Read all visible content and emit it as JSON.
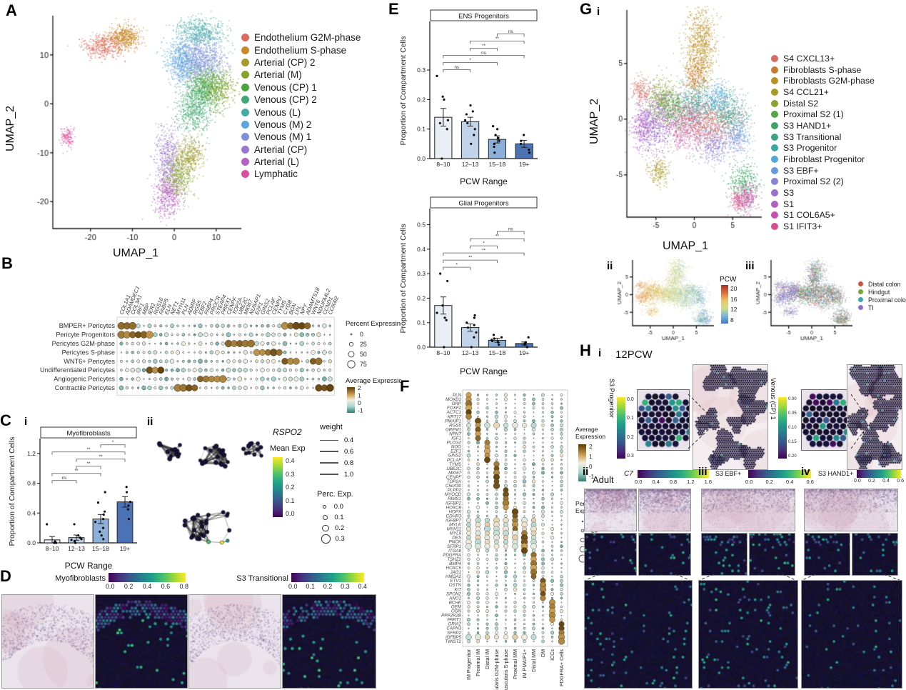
{
  "colors": {
    "viridis": [
      "#440154",
      "#46327e",
      "#365c8d",
      "#277f8e",
      "#1fa187",
      "#4ac16d",
      "#a0da39",
      "#fde725"
    ],
    "brbg": [
      "#2e7d72",
      "#a9d6cf",
      "#f2eedf",
      "#cfa355",
      "#5a3a06"
    ],
    "pcw_stops": [
      "#a63126",
      "#d96f3d",
      "#e8c56a",
      "#cfe08a",
      "#79b5d9",
      "#4a76c9"
    ],
    "bar_fills": [
      "#e9eef7",
      "#c2d4ea",
      "#8cb0d9",
      "#4a72b5"
    ]
  },
  "panels": {
    "A": {
      "label": "A",
      "xlabel": "UMAP_1",
      "ylabel": "UMAP_2",
      "xticks": [
        -20,
        -10,
        0,
        10
      ],
      "yticks": [
        10,
        0,
        -10,
        -20
      ],
      "xlim": [
        -29,
        16
      ],
      "ylim": [
        -25.5,
        18
      ],
      "legend": [
        {
          "label": "Endothelium G2M-phase",
          "color": "#d96a5f"
        },
        {
          "label": "Endothelium S-phase",
          "color": "#c88a28"
        },
        {
          "label": "Arterial (CP) 2",
          "color": "#a39b2f"
        },
        {
          "label": "Arterial (M)",
          "color": "#85a42c"
        },
        {
          "label": "Venous (CP) 1",
          "color": "#4aa53c"
        },
        {
          "label": "Venous (CP) 2",
          "color": "#3fa873"
        },
        {
          "label": "Venous (L)",
          "color": "#45aaa5"
        },
        {
          "label": "Venous (M) 2",
          "color": "#5aa7dc"
        },
        {
          "label": "Venous (M) 1",
          "color": "#7e8fd9"
        },
        {
          "label": "Arterial (CP)",
          "color": "#9a77cf"
        },
        {
          "label": "Arterial (L)",
          "color": "#b55fc2"
        },
        {
          "label": "Lymphatic",
          "color": "#d9509c"
        }
      ],
      "clusters": [
        [
          -17,
          12,
          2.6,
          1.2,
          420,
          "#d96a5f"
        ],
        [
          -12,
          13.6,
          2.0,
          1.3,
          480,
          "#c88a28"
        ],
        [
          6,
          14.6,
          3.0,
          1.5,
          520,
          "#45aaa5"
        ],
        [
          1.6,
          9,
          2.0,
          2.2,
          600,
          "#5aa7dc"
        ],
        [
          6.6,
          8.6,
          2.8,
          2.4,
          800,
          "#7e8fd9"
        ],
        [
          10.6,
          3,
          2.0,
          2.0,
          420,
          "#85a42c"
        ],
        [
          7.6,
          3.6,
          2.0,
          2.0,
          500,
          "#4aa53c"
        ],
        [
          5,
          -0.6,
          2.2,
          3.0,
          700,
          "#3fa873"
        ],
        [
          -1.6,
          -11,
          1.5,
          3.2,
          460,
          "#9a77cf"
        ],
        [
          3.6,
          -10.6,
          1.7,
          1.7,
          380,
          "#a39b2f"
        ],
        [
          1,
          -14.6,
          1.7,
          2.2,
          420,
          "#85a42c"
        ],
        [
          -1.6,
          -18.6,
          1.7,
          2.4,
          420,
          "#b55fc2"
        ],
        [
          -25.6,
          -6.6,
          0.8,
          1.0,
          130,
          "#d9509c"
        ]
      ]
    },
    "B": {
      "label": "B",
      "rows": [
        "BMPER+ Pericytes",
        "Pericyte Progenitors",
        "Pericytes G2M-phase",
        "Pericytes S-phase",
        "WNT6+ Pericytes",
        "Undifferentiated Pericytes",
        "Angiogenic Pericytes",
        "Contractile Pericytes"
      ],
      "genes": [
        "COL1A1",
        "ADAMDEC1",
        "COL3A1",
        "IRF1",
        "MBP",
        "IER2",
        "RGS16",
        "FABP5",
        "ELN",
        "NET1",
        "MYH11",
        "PLN",
        "ADIRF",
        "RGS5",
        "EBF2",
        "FABP4",
        "PROCR",
        "STEAP4",
        "PRRX1",
        "CENPF",
        "TOP2A",
        "UBE2C",
        "MKI67",
        "NUSAP1",
        "E2F1",
        "GINS2",
        "PCLAF",
        "CENPU",
        "TYMS",
        "CYGB",
        "BGN",
        "LPL",
        "NPY",
        "ADAMTS18",
        "WNT6",
        "NDUFA4L2",
        "CCND1",
        "COX4I2"
      ],
      "hot": [
        [
          [
            29,
            33
          ],
          [
            0,
            2
          ]
        ],
        [
          [
            0,
            5
          ]
        ],
        [
          [
            19,
            23
          ]
        ],
        [
          [
            24,
            28
          ]
        ],
        [
          [
            34,
            35
          ],
          [
            29,
            31
          ]
        ],
        [
          [
            5,
            7
          ]
        ],
        [
          [
            14,
            18
          ]
        ],
        [
          [
            10,
            13
          ],
          [
            35,
            37
          ]
        ]
      ],
      "legend_percent": {
        "title": "Percent Expressing",
        "values": [
          0,
          25,
          50,
          75
        ]
      },
      "legend_avg": {
        "title": "Average Expression",
        "ticks": [
          2,
          1,
          0,
          -1
        ]
      }
    },
    "C": {
      "label": "C",
      "sub_i": "i",
      "sub_ii": "ii",
      "chart": "myofibroblasts",
      "network": {
        "gene": "RSPO2",
        "mean_exp": {
          "title": "Mean Exp",
          "ticks": [
            "0.4",
            "0.3",
            "0.2",
            "0.1",
            "0.0"
          ]
        },
        "weight": {
          "title": "weight",
          "values": [
            "0.4",
            "0.6",
            "0.8",
            "1.0"
          ]
        },
        "perc": {
          "title": "Perc. Exp.",
          "values": [
            "0.0",
            "0.1",
            "0.2",
            "0.3"
          ]
        }
      }
    },
    "D": {
      "label": "D",
      "bars": [
        {
          "label": "Myofibroblasts",
          "ticks": [
            "0.0",
            "0.2",
            "0.4",
            "0.6",
            "0.8"
          ]
        },
        {
          "label": "S3 Transitional",
          "ticks": [
            "0.0",
            "0.1",
            "0.2",
            "0.3",
            "0.4"
          ]
        }
      ]
    },
    "E": {
      "label": "E",
      "charts": [
        "ens_progenitors",
        "glial_progenitors"
      ]
    },
    "F": {
      "label": "F",
      "genes": [
        "PLN",
        "MOXD1",
        "GRP",
        "FOXF2",
        "ACTC1",
        "KRT17",
        "PMAIP1",
        "RGS5",
        "GREM1",
        "NPNT",
        "IGF1",
        "PLCG2",
        "NOG",
        "E2F1",
        "GINS2",
        "PCLAF",
        "TYMS",
        "UBE2C",
        "MKI67",
        "CENPF",
        "TOP2A",
        "C5orf30",
        "PLPP2",
        "MYOCD",
        "RIMS1",
        "IGFBP2",
        "HOXC8",
        "HOPX",
        "CDHR3",
        "IGFBP7",
        "MYLK",
        "MYH11",
        "MYL9",
        "DES",
        "PNCK",
        "SFRP1",
        "ITGA8",
        "PDGFRA",
        "TSHZ2",
        "BMP4",
        "HOXC5",
        "JAG1",
        "HMGA2",
        "ETV1",
        "OSTN",
        "KIT",
        "SPON2",
        "ANO1",
        "BCHE",
        "GEM",
        "OGN",
        "PPP2R2B",
        "PART1",
        "GRIA2",
        "CAPN3",
        "SFRP2",
        "IGFBP5",
        "TWIST2"
      ],
      "columns": [
        "IM Progenitor",
        "Proximal IM",
        "Distal IM",
        "Muscularis G2M-phase",
        "Muscularis S-phase",
        "Proximal MM",
        "IM PMAIP1+",
        "Distal MM",
        "OM",
        "ICCs",
        "PDGFRA+ Cells"
      ],
      "wide_rows": [
        7,
        29,
        30,
        31,
        32,
        33,
        34,
        35,
        56
      ],
      "legend_avg": {
        "title": [
          "Average",
          "Expression"
        ],
        "ticks": [
          2,
          1,
          0,
          -1
        ]
      },
      "legend_percent": {
        "title": [
          "Percent",
          "Expressing"
        ],
        "values": [
          0,
          25,
          50,
          75,
          100
        ]
      }
    },
    "G": {
      "label": "G",
      "sub_i": "i",
      "sub_ii": "ii",
      "sub_iii": "iii",
      "xlabel": "UMAP_1",
      "ylabel": "UMAP_2",
      "xticks": [
        -5,
        0,
        5
      ],
      "yticks": [
        5,
        0,
        -5
      ],
      "xlim": [
        -8.8,
        8.8
      ],
      "ylim": [
        -8.8,
        9.8
      ],
      "legend": [
        {
          "label": "S4 CXCL13+",
          "color": "#d66a5e"
        },
        {
          "label": "Fibroblasts S-phase",
          "color": "#cc7a2c"
        },
        {
          "label": "Fibroblasts G2M-phase",
          "color": "#bb8f22"
        },
        {
          "label": "S4 CCL21+",
          "color": "#a89a28"
        },
        {
          "label": "Distal S2",
          "color": "#8aa32e"
        },
        {
          "label": "Proximal S2 (1)",
          "color": "#55a445"
        },
        {
          "label": "S3 HAND1+",
          "color": "#3aa566"
        },
        {
          "label": "S3 Transitional",
          "color": "#3ba583"
        },
        {
          "label": "S3 Progenitor",
          "color": "#3aa7a3"
        },
        {
          "label": "Fibroblast Progenitor",
          "color": "#4fa8d8"
        },
        {
          "label": "S3 EBF+",
          "color": "#6b97de"
        },
        {
          "label": "Proximal S2 (2)",
          "color": "#8583d8"
        },
        {
          "label": "S3",
          "color": "#9a6fce"
        },
        {
          "label": "S1",
          "color": "#b25fc4"
        },
        {
          "label": "S1 COL6A5+",
          "color": "#cc4fae"
        },
        {
          "label": "S1 IFIT3+",
          "color": "#d84f8c"
        }
      ],
      "clusters": [
        [
          0.8,
          6.6,
          1.0,
          1.8,
          800,
          "#bb8f22"
        ],
        [
          0.2,
          3.9,
          0.8,
          0.8,
          260,
          "#cc7a2c"
        ],
        [
          -4.3,
          1.8,
          1.0,
          1.0,
          420,
          "#8aa32e"
        ],
        [
          -2.7,
          0.9,
          1.1,
          0.9,
          420,
          "#55a445"
        ],
        [
          0.3,
          1.3,
          1.3,
          1.0,
          520,
          "#3aa7a3"
        ],
        [
          -5.4,
          -0.3,
          1.2,
          1.4,
          650,
          "#9a6fce"
        ],
        [
          -6.9,
          -0.7,
          0.7,
          0.9,
          240,
          "#b25fc4"
        ],
        [
          -1.3,
          -0.5,
          1.5,
          1.1,
          560,
          "#c75fae"
        ],
        [
          1.9,
          -0.3,
          2.0,
          1.2,
          720,
          "#d66a5e"
        ],
        [
          4.7,
          0.6,
          1.1,
          0.9,
          380,
          "#3ba583"
        ],
        [
          3.3,
          1.9,
          0.9,
          0.7,
          260,
          "#4fa8d8"
        ],
        [
          5.7,
          -1.3,
          0.8,
          0.8,
          260,
          "#6b97de"
        ],
        [
          2.5,
          -2.3,
          1.3,
          0.9,
          340,
          "#8583d8"
        ],
        [
          6.3,
          -5.7,
          1.0,
          1.1,
          380,
          "#3aa566"
        ],
        [
          7.0,
          -7.0,
          0.6,
          0.7,
          200,
          "#cc4fae"
        ],
        [
          5.7,
          -7.3,
          0.6,
          0.5,
          170,
          "#d84f8c"
        ],
        [
          -4.7,
          -4.7,
          0.8,
          0.6,
          210,
          "#a89a28"
        ],
        [
          -7.0,
          2.7,
          0.6,
          0.6,
          160,
          "#d66a5e"
        ]
      ],
      "pcw": {
        "title": "PCW",
        "ticks": [
          "20",
          "16",
          "12",
          "8"
        ]
      },
      "regions": [
        {
          "label": "Distal colon",
          "color": "#c0564c"
        },
        {
          "label": "Hindgut",
          "color": "#79a43c"
        },
        {
          "label": "Proximal colon",
          "color": "#3aa6a8"
        },
        {
          "label": "TI",
          "color": "#8b6fc9"
        }
      ]
    },
    "H": {
      "label": "H",
      "sub_i": "i",
      "stage": "12PCW",
      "i": {
        "left": {
          "label": "S3 Progenitor",
          "ticks": [
            "0.0",
            "0.1",
            "0.2",
            "0.3"
          ]
        },
        "right": {
          "label": "Venous (CP) 1",
          "ticks": [
            "0.00",
            "0.05",
            "0.10",
            "0.15",
            "0.20"
          ]
        }
      },
      "sub_ii": "ii",
      "adult": "Adult",
      "c7": {
        "label": "C7",
        "ticks": [
          "0.0",
          "0.4",
          "0.8",
          "1.2",
          "1.6"
        ]
      },
      "sub_iii": "iii",
      "ebf": {
        "label": "S3 EBF+",
        "ticks": [
          "0.0",
          "0.2",
          "0.4",
          "0.6"
        ]
      },
      "sub_iv": "iv",
      "hand1": {
        "label": "S3 HAND1+",
        "ticks": [
          "0.0",
          "0.2",
          "0.4",
          "0.6"
        ]
      }
    }
  },
  "chart_data": [
    {
      "id": "myofibroblasts",
      "type": "bar",
      "title": "Myofibroblasts",
      "categories": [
        "8–10",
        "12–13",
        "15–18",
        "19+"
      ],
      "values": [
        0.04,
        0.07,
        0.32,
        0.55
      ],
      "errors": [
        0.045,
        0.035,
        0.06,
        0.07
      ],
      "points": [
        [
          0.0,
          0.0,
          0.02,
          0.25
        ],
        [
          0.0,
          0.02,
          0.04,
          0.05,
          0.07,
          0.1,
          0.25
        ],
        [
          0.05,
          0.1,
          0.15,
          0.2,
          0.28,
          0.32,
          0.38,
          0.42,
          0.54,
          0.68
        ],
        [
          0.32,
          0.45,
          0.5,
          0.55,
          0.68,
          0.75
        ]
      ],
      "significance": [
        {
          "a": 0,
          "b": 1,
          "label": "ns"
        },
        {
          "a": 0,
          "b": 2,
          "label": "**"
        },
        {
          "a": 1,
          "b": 2,
          "label": "**"
        },
        {
          "a": 1,
          "b": 3,
          "label": "**"
        },
        {
          "a": 0,
          "b": 3,
          "label": "**"
        },
        {
          "a": 2,
          "b": 3,
          "label": "*"
        }
      ],
      "xlabel": "PCW Range",
      "ylabel": "Proportion of Compartment Cells",
      "yticks": [
        0.0,
        0.4,
        0.8,
        1.2
      ],
      "ylim": [
        0,
        1.38
      ]
    },
    {
      "id": "ens_progenitors",
      "type": "bar",
      "title": "ENS Progenitors",
      "categories": [
        "8–10",
        "12–13",
        "15–18",
        "19+"
      ],
      "values": [
        0.14,
        0.125,
        0.065,
        0.05
      ],
      "errors": [
        0.03,
        0.015,
        0.012,
        0.012
      ],
      "points": [
        [
          0.0,
          0.1,
          0.12,
          0.13,
          0.2,
          0.21,
          0.28
        ],
        [
          0.05,
          0.08,
          0.1,
          0.12,
          0.13,
          0.15,
          0.16,
          0.18
        ],
        [
          0.02,
          0.04,
          0.05,
          0.06,
          0.07,
          0.08,
          0.1,
          0.11
        ],
        [
          0.02,
          0.03,
          0.05,
          0.06,
          0.08
        ]
      ],
      "significance": [
        {
          "a": 0,
          "b": 1,
          "label": "ns"
        },
        {
          "a": 0,
          "b": 2,
          "label": "*"
        },
        {
          "a": 0,
          "b": 3,
          "label": "ns"
        },
        {
          "a": 1,
          "b": 2,
          "label": "**"
        },
        {
          "a": 1,
          "b": 3,
          "label": "**"
        },
        {
          "a": 2,
          "b": 3,
          "label": "ns"
        }
      ],
      "xlabel": "PCW Range",
      "ylabel": "Proportion of Compartment Cells",
      "yticks": [
        0.0,
        0.1,
        0.2,
        0.3
      ],
      "ylim": [
        0,
        0.46
      ]
    },
    {
      "id": "glial_progenitors",
      "type": "bar",
      "title": "Glial Progenitors",
      "categories": [
        "8–10",
        "12–13",
        "15–18",
        "19+"
      ],
      "values": [
        0.17,
        0.08,
        0.028,
        0.015
      ],
      "errors": [
        0.035,
        0.015,
        0.008,
        0.006
      ],
      "points": [
        [
          0.0,
          0.11,
          0.12,
          0.14,
          0.17,
          0.27,
          0.3
        ],
        [
          0.0,
          0.04,
          0.06,
          0.08,
          0.09,
          0.1,
          0.12,
          0.13
        ],
        [
          0.01,
          0.02,
          0.025,
          0.03,
          0.035,
          0.04,
          0.05
        ],
        [
          0.0,
          0.01,
          0.015,
          0.02,
          0.04
        ]
      ],
      "significance": [
        {
          "a": 0,
          "b": 1,
          "label": "*"
        },
        {
          "a": 0,
          "b": 2,
          "label": "**"
        },
        {
          "a": 0,
          "b": 3,
          "label": "**"
        },
        {
          "a": 1,
          "b": 2,
          "label": "*"
        },
        {
          "a": 1,
          "b": 3,
          "label": "**"
        },
        {
          "a": 2,
          "b": 3,
          "label": "ns"
        }
      ],
      "xlabel": "PCW Range",
      "ylabel": "Proportion of Compartment Cells",
      "yticks": [
        0.0,
        0.1,
        0.2,
        0.3,
        0.4,
        0.5
      ],
      "ylim": [
        0,
        0.56
      ]
    },
    {
      "id": "pericyte_dotplot",
      "type": "heatmap",
      "note": "dot plot; rows and genes in panels.B",
      "legend": [
        "Percent Expressing 0-75",
        "Average Expression -1..2"
      ]
    },
    {
      "id": "muscularis_dotplot",
      "type": "heatmap",
      "note": "dot plot; genes and columns in panels.F",
      "legend": [
        "Average Expression -1..2",
        "Percent Expressing 0-100"
      ]
    },
    {
      "id": "rspo2_network",
      "type": "scatter",
      "note": "gene network, RSPO2 mean expression; legends in panels.C.network"
    }
  ]
}
